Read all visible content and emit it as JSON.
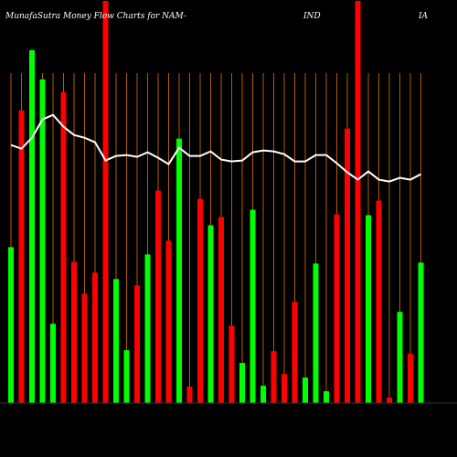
{
  "chart_data": {
    "type": "bar",
    "title_parts": [
      "MunafaSutra  Money Flow  Charts for NAM-",
      "IND",
      "IA"
    ],
    "categories": [
      null,
      null,
      null,
      null,
      null,
      null,
      null,
      null,
      null,
      null,
      null,
      null,
      null,
      null,
      null,
      null,
      null,
      null,
      null,
      null,
      null,
      null,
      null,
      null,
      null,
      null,
      null,
      null,
      null,
      null,
      null,
      null,
      null,
      null,
      null,
      null,
      null,
      null,
      null,
      null
    ],
    "values": [
      171,
      321,
      387,
      355,
      87,
      341,
      155,
      120,
      143,
      441,
      136,
      58,
      129,
      163,
      233,
      178,
      290,
      18,
      224,
      195,
      204,
      85,
      44,
      212,
      19,
      57,
      32,
      111,
      28,
      153,
      13,
      207,
      301,
      441,
      206,
      222,
      6,
      100,
      54,
      154
    ],
    "colors": [
      "#00ff00",
      "#ff0000",
      "#00ff00",
      "#00ff00",
      "#00ff00",
      "#ff0000",
      "#ff0000",
      "#ff0000",
      "#ff0000",
      "#ff0000",
      "#00ff00",
      "#00ff00",
      "#ff0000",
      "#00ff00",
      "#ff0000",
      "#ff0000",
      "#00ff00",
      "#ff0000",
      "#ff0000",
      "#00ff00",
      "#ff0000",
      "#ff0000",
      "#00ff00",
      "#00ff00",
      "#00ff00",
      "#ff0000",
      "#ff0000",
      "#ff0000",
      "#00ff00",
      "#00ff00",
      "#00ff00",
      "#ff0000",
      "#ff0000",
      "#ff0000",
      "#00ff00",
      "#ff0000",
      "#ff0000",
      "#00ff00",
      "#ff0000",
      "#00ff00"
    ],
    "line": {
      "color": "#ffffff",
      "values": [
        283,
        279,
        291,
        311,
        316,
        303,
        294,
        291,
        286,
        266,
        271,
        272,
        270,
        275,
        269,
        262,
        280,
        271,
        271,
        276,
        267,
        265,
        266,
        275,
        277,
        276,
        273,
        265,
        265,
        272,
        272,
        263,
        253,
        245,
        254,
        245,
        243,
        247,
        245,
        251
      ]
    },
    "ylim": [
      0,
      441
    ],
    "grid": true,
    "grid_color": "#b35c00"
  }
}
